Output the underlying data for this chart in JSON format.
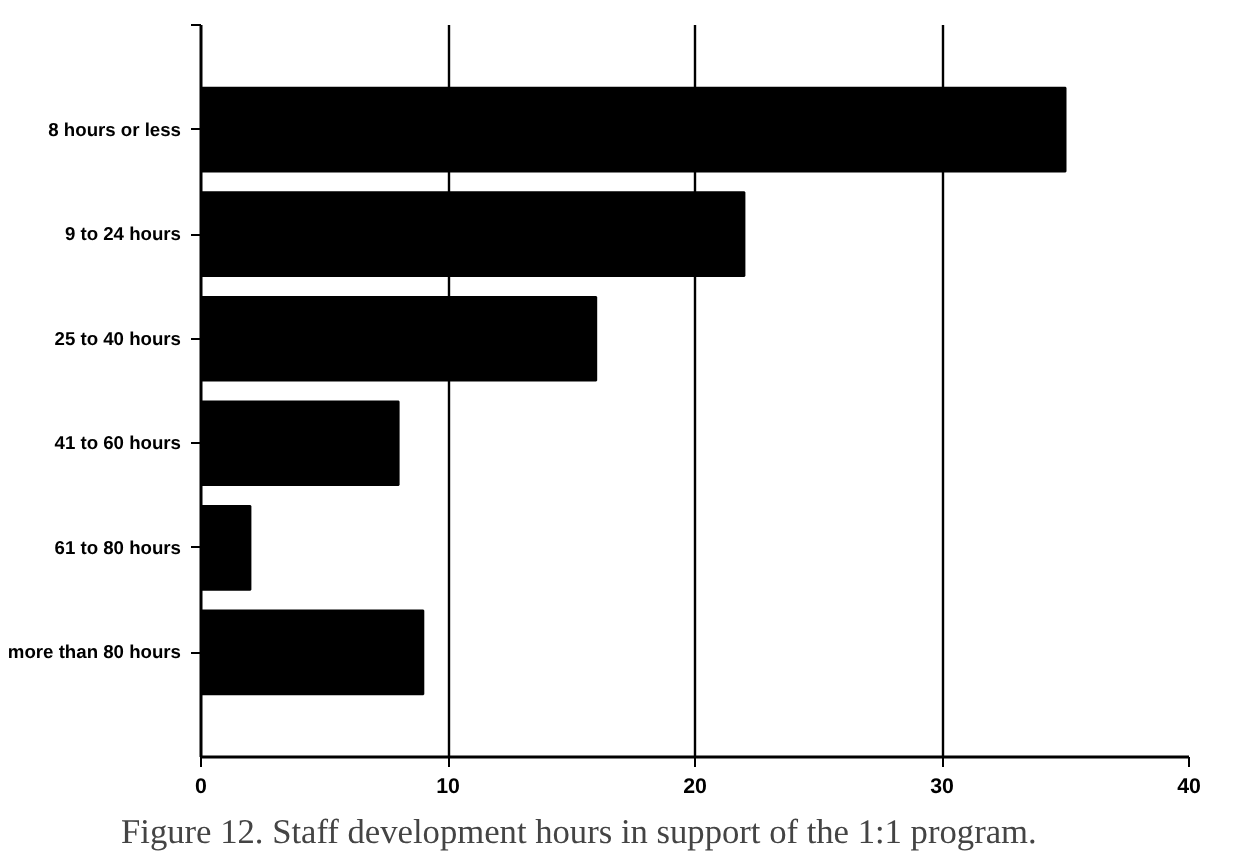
{
  "chart_data": {
    "type": "bar",
    "orientation": "horizontal",
    "categories": [
      "8 hours or less",
      "9 to 24 hours",
      "25 to 40 hours",
      "41 to 60 hours",
      "61 to 80 hours",
      "more than 80 hours"
    ],
    "values": [
      35,
      22,
      16,
      8,
      2,
      9
    ],
    "color": "#000000",
    "xlim": [
      0,
      40
    ],
    "xticks": [
      0,
      10,
      20,
      30,
      40
    ],
    "grid": "x",
    "annotations": [
      "Figure 12. Staff development hours in support of the 1:1 program."
    ]
  }
}
